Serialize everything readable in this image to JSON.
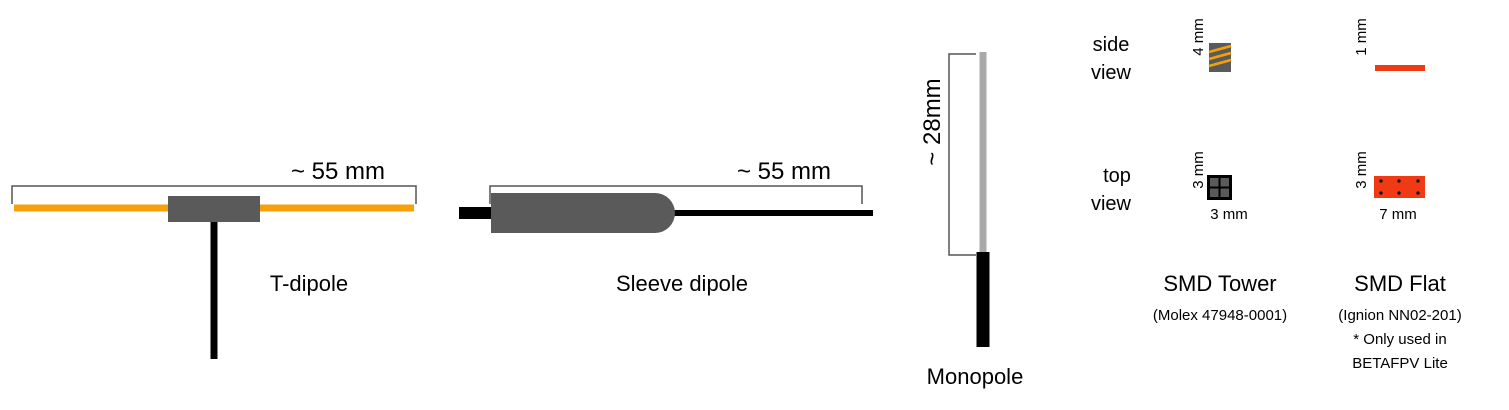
{
  "colors": {
    "orange": "#f6a10a",
    "dark_gray": "#5a5a5a",
    "light_gray": "#a9a9a9",
    "black": "#000000",
    "red": "#f03a14",
    "bracket": "#555555"
  },
  "t_dipole": {
    "dimension": "~ 55 mm",
    "name": "T-dipole"
  },
  "sleeve_dipole": {
    "dimension": "~ 55 mm",
    "name": "Sleeve dipole"
  },
  "monopole": {
    "dimension": "~ 28mm",
    "name": "Monopole"
  },
  "smd": {
    "row_side": [
      "side",
      "view"
    ],
    "row_top": [
      "top",
      "view"
    ],
    "tower": {
      "side_height": "4 mm",
      "top_height": "3 mm",
      "top_width": "3 mm",
      "name": "SMD Tower",
      "part": "(Molex 47948-0001)"
    },
    "flat": {
      "side_height": "1 mm",
      "top_height": "3 mm",
      "top_width": "7 mm",
      "name": "SMD Flat",
      "part": "(Ignion NN02-201)",
      "note": [
        "* Only used in",
        "BETAFPV Lite"
      ]
    }
  }
}
